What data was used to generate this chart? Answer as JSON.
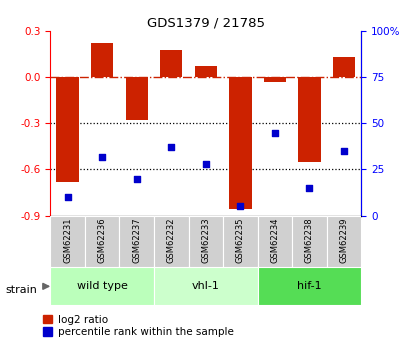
{
  "title": "GDS1379 / 21785",
  "samples": [
    "GSM62231",
    "GSM62236",
    "GSM62237",
    "GSM62232",
    "GSM62233",
    "GSM62235",
    "GSM62234",
    "GSM62238",
    "GSM62239"
  ],
  "log2_ratio": [
    -0.68,
    0.22,
    -0.28,
    0.18,
    0.07,
    -0.86,
    -0.03,
    -0.55,
    0.13
  ],
  "percentile_rank": [
    10,
    32,
    20,
    37,
    28,
    5,
    45,
    15,
    35
  ],
  "ylim_left": [
    -0.9,
    0.3
  ],
  "ylim_right": [
    0,
    100
  ],
  "yticks_left": [
    -0.9,
    -0.6,
    -0.3,
    0.0,
    0.3
  ],
  "yticks_right": [
    0,
    25,
    50,
    75,
    100
  ],
  "ytick_labels_right": [
    "0",
    "25",
    "50",
    "75",
    "100%"
  ],
  "hlines": [
    -0.3,
    -0.6
  ],
  "groups": [
    {
      "label": "wild type",
      "start": 0,
      "end": 3,
      "color": "#bbffbb"
    },
    {
      "label": "vhl-1",
      "start": 3,
      "end": 6,
      "color": "#ccffcc"
    },
    {
      "label": "hif-1",
      "start": 6,
      "end": 9,
      "color": "#55dd55"
    }
  ],
  "bar_color": "#cc2200",
  "scatter_color": "#0000cc",
  "zero_line_color": "#cc2200",
  "plot_bg": "#ffffff",
  "sample_box_color": "#d0d0d0",
  "legend_red_label": "log2 ratio",
  "legend_blue_label": "percentile rank within the sample"
}
